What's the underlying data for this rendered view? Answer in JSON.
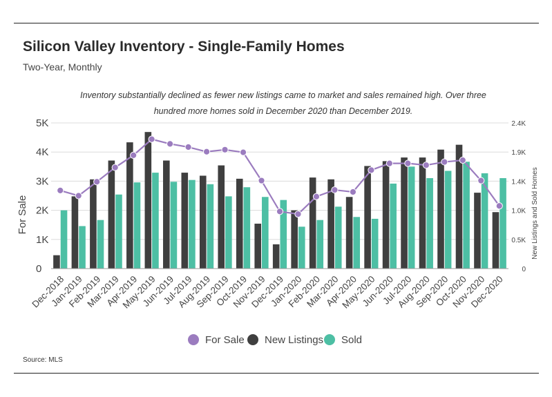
{
  "header": {
    "title": "Silicon Valley Inventory - Single-Family Homes",
    "subtitle": "Two-Year, Monthly"
  },
  "annotation": "Inventory substantially declined as fewer new listings came to market and sales remained high. Over three hundred more homes sold in December 2020 than December 2019.",
  "source": "Source:  MLS",
  "colors": {
    "for_sale": "#9b7cbf",
    "new_listings": "#3f3f3f",
    "sold": "#4dbfa4",
    "grid": "#dcdcdc",
    "rule": "#222222"
  },
  "chart_data": {
    "type": "bar",
    "title": "Silicon Valley Inventory - Single-Family Homes",
    "subtitle": "Two-Year, Monthly",
    "categories": [
      "Dec-2018",
      "Jan-2019",
      "Feb-2019",
      "Mar-2019",
      "Apr-2019",
      "May-2019",
      "Jun-2019",
      "Jul-2019",
      "Aug-2019",
      "Sep-2019",
      "Oct-2019",
      "Nov-2019",
      "Dec-2019",
      "Jan-2020",
      "Feb-2020",
      "Mar-2020",
      "Apr-2020",
      "May-2020",
      "Jun-2020",
      "Jul-2020",
      "Aug-2020",
      "Sep-2020",
      "Oct-2020",
      "Nov-2020",
      "Dec-2020"
    ],
    "series": [
      {
        "name": "For Sale",
        "type": "line",
        "axis": "left",
        "values": [
          2680,
          2500,
          2980,
          3470,
          3890,
          4440,
          4280,
          4170,
          4010,
          4080,
          3990,
          3020,
          1960,
          1870,
          2470,
          2700,
          2630,
          3380,
          3610,
          3610,
          3550,
          3660,
          3720,
          3020,
          2150
        ]
      },
      {
        "name": "New Listings",
        "type": "bar",
        "axis": "right",
        "values": [
          220,
          1190,
          1470,
          1780,
          2080,
          2250,
          1780,
          1580,
          1530,
          1700,
          1480,
          740,
          400,
          960,
          1500,
          1470,
          1180,
          1690,
          1770,
          1830,
          1830,
          1960,
          2040,
          1250,
          930
        ]
      },
      {
        "name": "Sold",
        "type": "bar",
        "axis": "right",
        "values": [
          960,
          700,
          800,
          1220,
          1420,
          1580,
          1430,
          1460,
          1390,
          1190,
          1340,
          1180,
          1130,
          690,
          800,
          1020,
          850,
          820,
          1400,
          1680,
          1490,
          1610,
          1760,
          1570,
          1490
        ]
      }
    ],
    "ylabel": "For Sale",
    "y2label": "New Listings and Sold Homes",
    "yticks": [
      "0",
      "1K",
      "2K",
      "3K",
      "4K",
      "5K"
    ],
    "ylim": [
      0,
      5000
    ],
    "y2ticks": [
      "0",
      "0.5K",
      "1.0K",
      "1.4K",
      "1.9K",
      "2.4K"
    ],
    "y2lim": [
      0,
      2400
    ],
    "grid": true,
    "legend": {
      "placement": "bottom",
      "entries": [
        "For Sale",
        "New Listings",
        "Sold"
      ]
    }
  }
}
